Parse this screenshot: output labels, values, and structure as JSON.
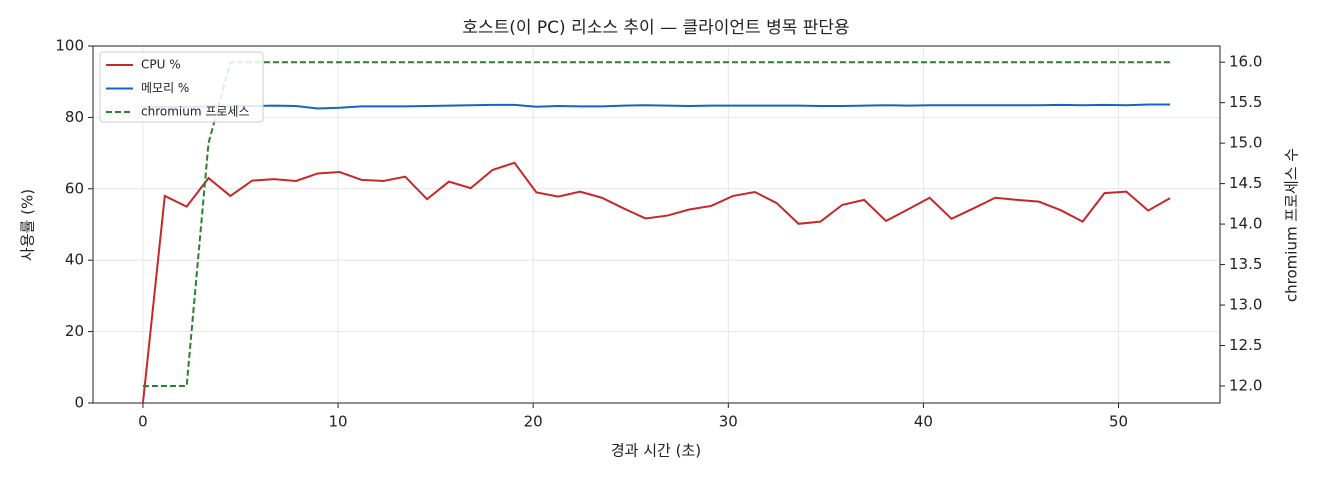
{
  "chart_data": {
    "type": "line",
    "title": "호스트(이 PC) 리소스 추이 — 클라이언트 병목 판단용",
    "x_label": "경과 시간 (초)",
    "y_label": "사용률 (%)",
    "y2_label": "chromium 프로세스 수",
    "x": [
      0,
      1.12,
      2.24,
      3.36,
      4.48,
      5.6,
      6.72,
      7.84,
      8.96,
      10.08,
      11.2,
      12.32,
      13.44,
      14.56,
      15.68,
      16.8,
      17.92,
      19.04,
      20.16,
      21.28,
      22.4,
      23.52,
      24.64,
      25.76,
      26.88,
      28,
      29.12,
      30.24,
      31.36,
      32.48,
      33.6,
      34.72,
      35.84,
      36.96,
      38.08,
      39.2,
      40.32,
      41.44,
      42.56,
      43.68,
      44.8,
      45.92,
      47.04,
      48.16,
      49.28,
      50.4,
      51.52,
      52.64
    ],
    "series": [
      {
        "name": "CPU %",
        "color": "#c62828",
        "linestyle": "solid",
        "values": [
          0,
          58,
          55,
          63,
          58,
          62.3,
          62.7,
          62.2,
          64.3,
          64.7,
          62.5,
          62.2,
          63.4,
          57.1,
          62,
          60.2,
          65.3,
          67.3,
          59,
          57.8,
          59.2,
          57.5,
          54.5,
          51.7,
          52.5,
          54.2,
          55.2,
          58,
          59.1,
          56,
          50.2,
          50.8,
          55.5,
          56.9,
          51,
          54.2,
          57.5,
          51.6,
          54.5,
          57.5,
          56.9,
          56.4,
          54,
          50.8,
          58.8,
          59.2,
          53.9,
          57.4
        ]
      },
      {
        "name": "메모리 %",
        "color": "#1565c0",
        "linestyle": "solid",
        "values": [
          82.8,
          82.9,
          83,
          83.1,
          83.1,
          83.2,
          83.3,
          83.2,
          82.5,
          82.7,
          83.1,
          83.1,
          83.1,
          83.2,
          83.3,
          83.4,
          83.5,
          83.5,
          83,
          83.2,
          83.1,
          83.1,
          83.3,
          83.4,
          83.3,
          83.2,
          83.3,
          83.3,
          83.3,
          83.3,
          83.3,
          83.2,
          83.2,
          83.3,
          83.4,
          83.3,
          83.4,
          83.4,
          83.4,
          83.4,
          83.4,
          83.4,
          83.5,
          83.4,
          83.5,
          83.4,
          83.6,
          83.6
        ]
      },
      {
        "name": "chromium 프로세스",
        "color": "#2e7d32",
        "linestyle": "dashed",
        "axis": "y2",
        "values": [
          12,
          12,
          12,
          15,
          16,
          16,
          16,
          16,
          16,
          16,
          16,
          16,
          16,
          16,
          16,
          16,
          16,
          16,
          16,
          16,
          16,
          16,
          16,
          16,
          16,
          16,
          16,
          16,
          16,
          16,
          16,
          16,
          16,
          16,
          16,
          16,
          16,
          16,
          16,
          16,
          16,
          16,
          16,
          16,
          16,
          16,
          16,
          16
        ]
      }
    ],
    "xlim": [
      -2.56,
      55.2
    ],
    "xticks": [
      0,
      10,
      20,
      30,
      40,
      50
    ],
    "ylim": [
      0,
      100
    ],
    "yticks": [
      0,
      20,
      40,
      60,
      80,
      100
    ],
    "y2lim": [
      11.79,
      16.2
    ],
    "y2ticks": [
      {
        "value": 12,
        "label": "12.0"
      },
      {
        "value": 12.5,
        "label": "12.5"
      },
      {
        "value": 13,
        "label": "13.0"
      },
      {
        "value": 13.5,
        "label": "13.5"
      },
      {
        "value": 14,
        "label": "14.0"
      },
      {
        "value": 14.5,
        "label": "14.5"
      },
      {
        "value": 15,
        "label": "15.0"
      },
      {
        "value": 15.5,
        "label": "15.5"
      },
      {
        "value": 16,
        "label": "16.0"
      }
    ],
    "grid": true,
    "legend": "upper-left"
  }
}
